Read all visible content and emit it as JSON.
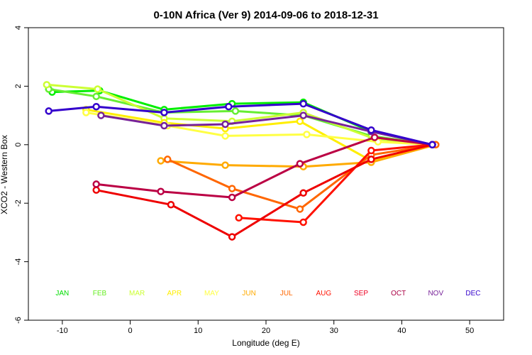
{
  "chart_data": {
    "type": "line",
    "title": "0-10N Africa (Ver 9)   2014-09-06 to 2018-12-31",
    "xlabel": "Longitude (deg E)",
    "ylabel": "XCO2 - Western Box",
    "xlim": [
      -15,
      55
    ],
    "ylim": [
      -6,
      4
    ],
    "xticks": [
      -10,
      0,
      10,
      20,
      30,
      40,
      50
    ],
    "yticks": [
      -6,
      -4,
      -2,
      0,
      2,
      4
    ],
    "grid": false,
    "month_labels": [
      {
        "text": "JAN",
        "color": "#00dd00",
        "x": -10
      },
      {
        "text": "FEB",
        "color": "#66ee22",
        "x": -4.5
      },
      {
        "text": "MAR",
        "color": "#ccff33",
        "x": 1
      },
      {
        "text": "APR",
        "color": "#ffee00",
        "x": 6.5
      },
      {
        "text": "MAY",
        "color": "#ffff44",
        "x": 12
      },
      {
        "text": "JUN",
        "color": "#ffaa00",
        "x": 17.5
      },
      {
        "text": "JUL",
        "color": "#ff6600",
        "x": 23
      },
      {
        "text": "AUG",
        "color": "#ff1100",
        "x": 28.5
      },
      {
        "text": "SEP",
        "color": "#ee0022",
        "x": 34
      },
      {
        "text": "OCT",
        "color": "#aa0044",
        "x": 39.5
      },
      {
        "text": "NOV",
        "color": "#772299",
        "x": 45
      },
      {
        "text": "DEC",
        "color": "#3300cc",
        "x": 50.5
      }
    ],
    "month_label_y": -5.15,
    "series": [
      {
        "color": "#00ee00",
        "points": [
          [
            -11.5,
            1.8
          ],
          [
            -4.5,
            1.85
          ],
          [
            5,
            1.2
          ],
          [
            15,
            1.4
          ],
          [
            25.5,
            1.45
          ],
          [
            35.5,
            0.45
          ],
          [
            44.5,
            0.0
          ]
        ]
      },
      {
        "color": "#66ee33",
        "points": [
          [
            -12,
            1.9
          ],
          [
            -5,
            1.65
          ],
          [
            5,
            1.1
          ],
          [
            15.5,
            1.15
          ],
          [
            25.5,
            1.0
          ],
          [
            35.5,
            0.3
          ],
          [
            44.5,
            0.0
          ]
        ]
      },
      {
        "color": "#ccff33",
        "points": [
          [
            -12.3,
            2.05
          ],
          [
            -4.8,
            1.9
          ],
          [
            5,
            0.9
          ],
          [
            15,
            0.8
          ],
          [
            25.5,
            1.1
          ],
          [
            36,
            0.2
          ],
          [
            44.5,
            0.0
          ]
        ]
      },
      {
        "color": "#ffee00",
        "points": [
          [
            -6.5,
            1.2
          ],
          [
            5,
            0.75
          ],
          [
            14,
            0.55
          ],
          [
            25,
            0.8
          ],
          [
            35.5,
            -0.55
          ],
          [
            44.5,
            0.0
          ]
        ]
      },
      {
        "color": "#ffff44",
        "points": [
          [
            -6.5,
            1.1
          ],
          [
            5.5,
            0.65
          ],
          [
            14,
            0.3
          ],
          [
            26,
            0.35
          ],
          [
            36.5,
            0.1
          ],
          [
            44.5,
            0.0
          ]
        ]
      },
      {
        "color": "#ffaa00",
        "points": [
          [
            4.5,
            -0.55
          ],
          [
            14,
            -0.7
          ],
          [
            25.5,
            -0.75
          ],
          [
            35.5,
            -0.6
          ],
          [
            45,
            0.0
          ]
        ]
      },
      {
        "color": "#ff6600",
        "points": [
          [
            5.5,
            -0.5
          ],
          [
            15,
            -1.5
          ],
          [
            25,
            -2.2
          ],
          [
            35.5,
            -0.35
          ],
          [
            45,
            0.0
          ]
        ]
      },
      {
        "color": "#ff1100",
        "points": [
          [
            16,
            -2.5
          ],
          [
            25.5,
            -2.65
          ],
          [
            35.5,
            -0.2
          ],
          [
            44.5,
            0.0
          ]
        ]
      },
      {
        "color": "#ee0000",
        "points": [
          [
            -5,
            -1.55
          ],
          [
            6,
            -2.05
          ],
          [
            15,
            -3.15
          ],
          [
            25.5,
            -1.65
          ],
          [
            35.5,
            -0.5
          ],
          [
            44.5,
            0.0
          ]
        ]
      },
      {
        "color": "#bb0044",
        "points": [
          [
            -5,
            -1.35
          ],
          [
            4.5,
            -1.6
          ],
          [
            15,
            -1.8
          ],
          [
            25,
            -0.65
          ],
          [
            36,
            0.25
          ],
          [
            44.5,
            0.0
          ]
        ]
      },
      {
        "color": "#772299",
        "points": [
          [
            -4.3,
            1.0
          ],
          [
            5,
            0.65
          ],
          [
            14,
            0.7
          ],
          [
            25.5,
            1.0
          ],
          [
            35.5,
            0.45
          ],
          [
            44.5,
            0.0
          ]
        ]
      },
      {
        "color": "#3300cc",
        "points": [
          [
            -12,
            1.15
          ],
          [
            -5,
            1.3
          ],
          [
            5,
            1.1
          ],
          [
            14.5,
            1.3
          ],
          [
            25.5,
            1.4
          ],
          [
            35.5,
            0.5
          ],
          [
            44.5,
            0.0
          ]
        ]
      }
    ]
  }
}
